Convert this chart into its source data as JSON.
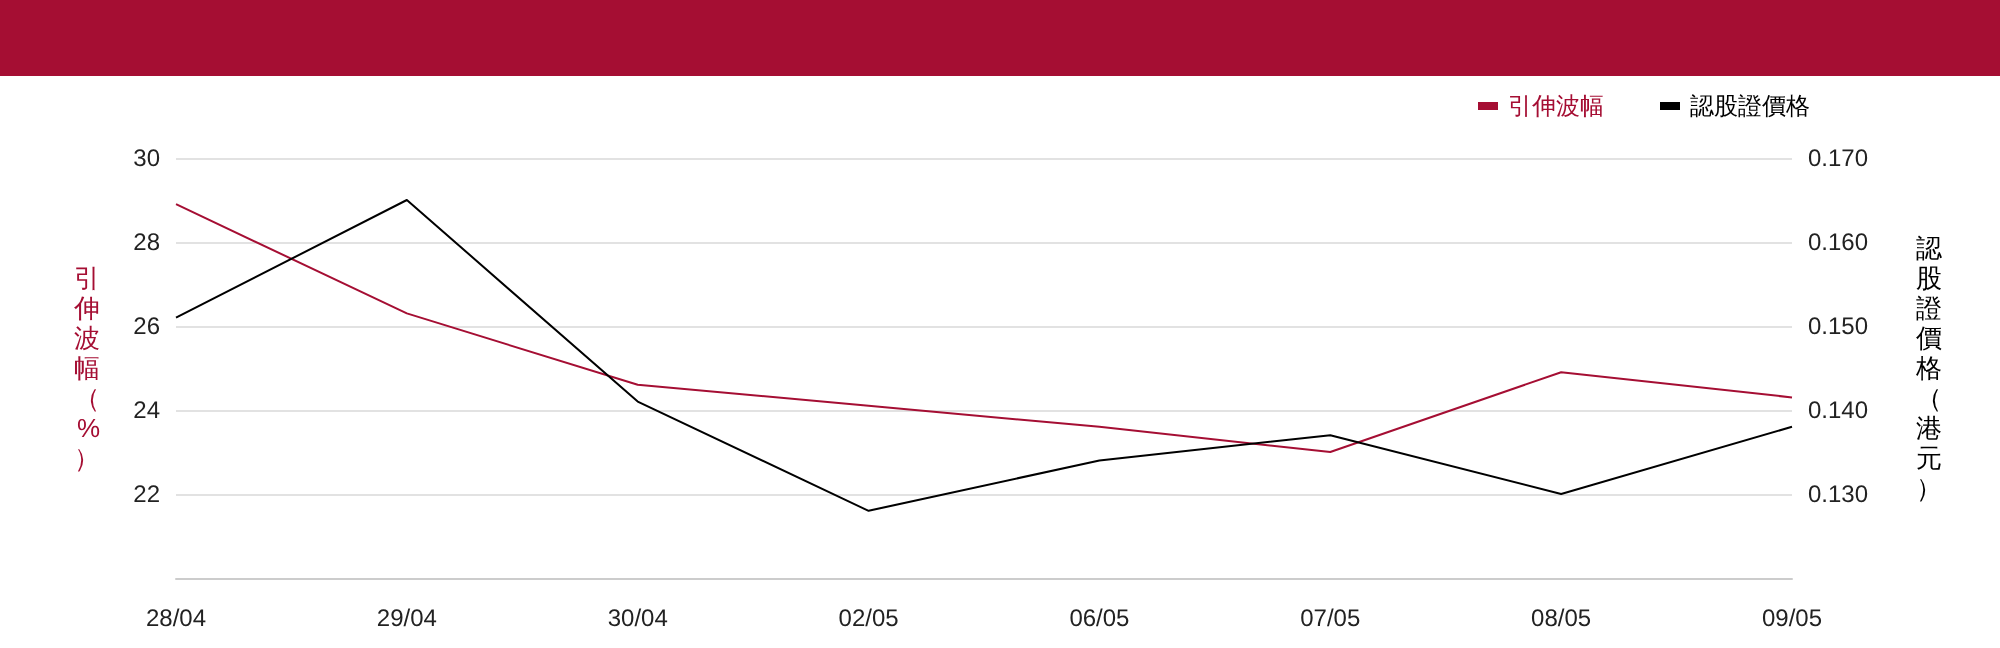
{
  "chart_data": {
    "type": "line",
    "ylabel": "引伸波幅（%）",
    "y2label": "認股證價格（港元）",
    "categories": [
      "28/04",
      "29/04",
      "30/04",
      "02/05",
      "06/05",
      "07/05",
      "08/05",
      "09/05"
    ],
    "series": [
      {
        "name": "引伸波幅",
        "color": "#a50e33",
        "values": [
          28.9,
          26.3,
          24.6,
          24.1,
          23.6,
          23.0,
          24.9,
          24.3
        ]
      },
      {
        "name": "認股證價格",
        "color": "#000000",
        "axis": "y2",
        "values": [
          0.151,
          0.165,
          0.141,
          0.128,
          0.134,
          0.137,
          0.13,
          0.138
        ]
      }
    ],
    "ylim": [
      20,
      30
    ],
    "yticks": [
      22,
      24,
      26,
      28,
      30
    ],
    "y2lim": [
      0.12,
      0.17
    ],
    "y2ticks": [
      {
        "value": 0.13,
        "label": "0.130"
      },
      {
        "value": 0.14,
        "label": "0.140"
      },
      {
        "value": 0.15,
        "label": "0.150"
      },
      {
        "value": 0.16,
        "label": "0.160"
      },
      {
        "value": 0.17,
        "label": "0.170"
      }
    ],
    "grid": "y",
    "legend": "top right",
    "marker": "none",
    "line_style": "solid"
  }
}
